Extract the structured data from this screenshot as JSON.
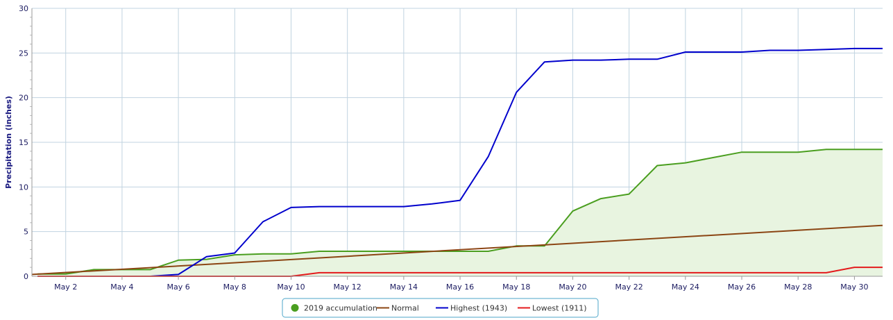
{
  "chart_data": {
    "type": "line",
    "title": "",
    "xlabel": "",
    "ylabel": "Precipitation (inches)",
    "ylim": [
      0,
      30
    ],
    "xlim": [
      0.8,
      31.0
    ],
    "y_ticks": [
      0,
      5,
      10,
      15,
      20,
      25,
      30
    ],
    "x_ticks": [
      {
        "day": 2,
        "label": "May 2"
      },
      {
        "day": 4,
        "label": "May 4"
      },
      {
        "day": 6,
        "label": "May 6"
      },
      {
        "day": 8,
        "label": "May 8"
      },
      {
        "day": 10,
        "label": "May 10"
      },
      {
        "day": 12,
        "label": "May 12"
      },
      {
        "day": 14,
        "label": "May 14"
      },
      {
        "day": 16,
        "label": "May 16"
      },
      {
        "day": 18,
        "label": "May 18"
      },
      {
        "day": 20,
        "label": "May 20"
      },
      {
        "day": 22,
        "label": "May 22"
      },
      {
        "day": 24,
        "label": "May 24"
      },
      {
        "day": 26,
        "label": "May 26"
      },
      {
        "day": 28,
        "label": "May 28"
      },
      {
        "day": 30,
        "label": "May 30"
      }
    ],
    "grid": true,
    "legend_position": "bottom-center",
    "series": [
      {
        "name": "2019 accumulation",
        "style": "area",
        "color": "#4a9e1f",
        "fill": "#e8f4e0",
        "x": [
          1,
          2,
          3,
          4,
          5,
          6,
          7,
          8,
          9,
          10,
          11,
          12,
          13,
          14,
          15,
          16,
          17,
          18,
          19,
          20,
          21,
          22,
          23,
          24,
          25,
          26,
          27,
          28,
          29,
          30,
          31
        ],
        "y": [
          0.25,
          0.25,
          0.75,
          0.75,
          0.75,
          1.8,
          1.9,
          2.4,
          2.5,
          2.5,
          2.8,
          2.8,
          2.8,
          2.8,
          2.8,
          2.8,
          2.8,
          3.4,
          3.4,
          7.3,
          8.7,
          9.2,
          12.4,
          12.7,
          13.3,
          13.9,
          13.9,
          13.9,
          14.2,
          14.2,
          14.2
        ]
      },
      {
        "name": "Normal",
        "style": "line",
        "color": "#8b4513",
        "x": [
          0.8,
          31.0
        ],
        "y": [
          0.2,
          5.7
        ]
      },
      {
        "name": "Highest (1943)",
        "style": "line",
        "color": "#0000cc",
        "x": [
          1,
          2,
          3,
          4,
          5,
          6,
          7,
          8,
          9,
          10,
          11,
          12,
          13,
          14,
          15,
          16,
          17,
          18,
          19,
          20,
          21,
          22,
          23,
          24,
          25,
          26,
          27,
          28,
          29,
          30,
          31
        ],
        "y": [
          0,
          0,
          0,
          0,
          0,
          0.2,
          2.2,
          2.6,
          6.1,
          7.7,
          7.8,
          7.8,
          7.8,
          7.8,
          8.1,
          8.5,
          13.4,
          20.6,
          24.0,
          24.2,
          24.2,
          24.3,
          24.3,
          25.1,
          25.1,
          25.1,
          25.3,
          25.3,
          25.4,
          25.5,
          25.5
        ]
      },
      {
        "name": "Lowest (1911)",
        "style": "line",
        "color": "#e41a1c",
        "x": [
          1,
          2,
          3,
          4,
          5,
          6,
          7,
          8,
          9,
          10,
          11,
          12,
          13,
          14,
          15,
          16,
          17,
          18,
          19,
          20,
          21,
          22,
          23,
          24,
          25,
          26,
          27,
          28,
          29,
          30,
          31
        ],
        "y": [
          0,
          0,
          0,
          0,
          0,
          0,
          0,
          0,
          0,
          0,
          0.4,
          0.4,
          0.4,
          0.4,
          0.4,
          0.4,
          0.4,
          0.4,
          0.4,
          0.4,
          0.4,
          0.4,
          0.4,
          0.4,
          0.4,
          0.4,
          0.4,
          0.4,
          0.4,
          1.0,
          1.0
        ]
      }
    ]
  },
  "colors": {
    "grid": "#c0d3e0",
    "axis": "#999999",
    "legend_border": "#4da6c9"
  },
  "legend": {
    "items": [
      {
        "label": "2019 accumulation",
        "marker": "dot",
        "color": "#4a9e1f"
      },
      {
        "label": "Normal",
        "marker": "line",
        "color": "#8b4513"
      },
      {
        "label": "Highest (1943)",
        "marker": "line",
        "color": "#0000cc"
      },
      {
        "label": "Lowest (1911)",
        "marker": "line",
        "color": "#e41a1c"
      }
    ]
  }
}
